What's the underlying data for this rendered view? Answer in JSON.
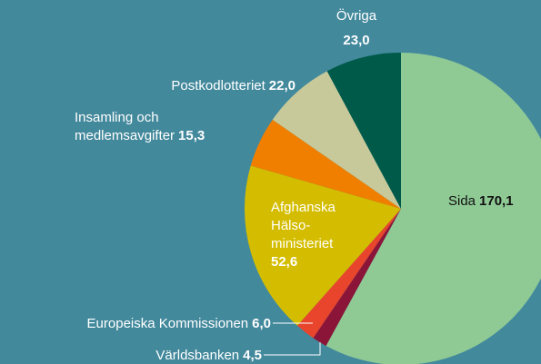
{
  "chart_data": {
    "type": "pie",
    "categories": [
      "Sida",
      "Världsbanken",
      "Europeiska Kommissionen",
      "Afghanska\nHälso-\nministeriet",
      "Insamling och\nmedlemsavgifter",
      "Postkodlotteriet",
      "Övriga"
    ],
    "values": [
      170.1,
      4.5,
      6.0,
      52.6,
      15.3,
      22.0,
      23.0
    ],
    "value_labels": [
      "170,1",
      "4,5",
      "6,0",
      "52,6",
      "15,3",
      "22,0",
      "23,0"
    ],
    "colors": [
      "#8fca95",
      "#8b1538",
      "#e8452c",
      "#d4bd00",
      "#f07f00",
      "#c7c99a",
      "#005a4a"
    ]
  }
}
